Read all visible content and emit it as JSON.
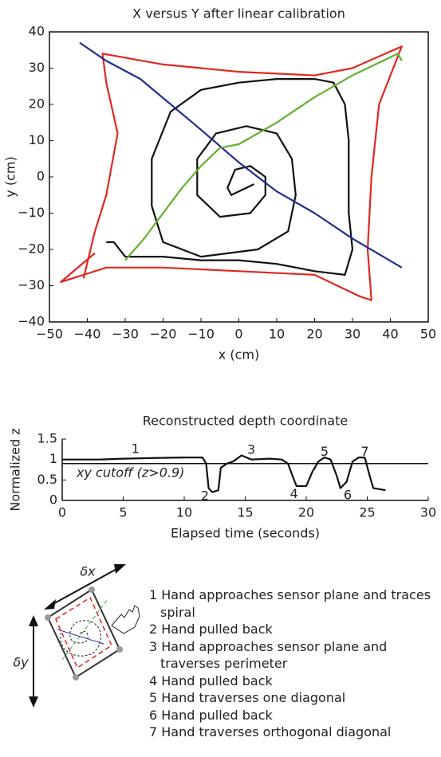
{
  "chart_data": [
    {
      "type": "line",
      "title": "X versus Y after linear calibration",
      "xlabel": "x (cm)",
      "ylabel": "y (cm)",
      "box": true,
      "xlim": [
        -50,
        50
      ],
      "xticks": [
        {
          "value": -50,
          "label": "−50"
        },
        {
          "value": -40,
          "label": "−40"
        },
        {
          "value": -30,
          "label": "−30"
        },
        {
          "value": -20,
          "label": "−20"
        },
        {
          "value": -10,
          "label": "−10"
        },
        0,
        10,
        20,
        30,
        40,
        50
      ],
      "ylim": [
        -40,
        40
      ],
      "yticks": [
        {
          "value": -40,
          "label": "−40"
        },
        {
          "value": -30,
          "label": "−30"
        },
        {
          "value": -20,
          "label": "−20"
        },
        {
          "value": -10,
          "label": "−10"
        },
        0,
        10,
        20,
        30,
        40
      ],
      "series": [
        {
          "color": "#e0281e",
          "x": [
            -38,
            -47,
            -35,
            -20,
            0,
            20,
            32,
            35,
            34,
            35,
            37,
            43,
            30,
            20,
            0,
            -20,
            -36,
            -35,
            -32,
            -35,
            -38,
            -41
          ],
          "values": [
            -21,
            -29,
            -25,
            -25,
            -26,
            -27,
            -33,
            -34,
            -20,
            0,
            20,
            36,
            30,
            28,
            29,
            31,
            34,
            26,
            12,
            -5,
            -15,
            -28
          ]
        },
        {
          "color": "#111111",
          "x": [
            4,
            -2,
            -3,
            -1,
            3,
            7,
            7,
            3,
            -5,
            -11,
            -11,
            -6,
            2,
            10,
            14,
            15,
            13,
            5,
            -10,
            -20,
            -23,
            -23,
            -18,
            -10,
            0,
            10,
            20,
            25,
            28,
            29,
            29,
            29,
            30,
            28,
            20,
            10,
            0,
            -10,
            -20,
            -30,
            -33,
            -35
          ],
          "values": [
            -2,
            -5,
            -3,
            2,
            3,
            0,
            -5,
            -10,
            -11,
            -5,
            5,
            12,
            14,
            12,
            5,
            -5,
            -15,
            -20,
            -22,
            -18,
            -8,
            5,
            18,
            24,
            26,
            27,
            27,
            26,
            20,
            10,
            0,
            -10,
            -20,
            -27,
            -26,
            -24,
            -23,
            -23,
            -22,
            -22,
            -18,
            -18
          ]
        },
        {
          "color": "#1f2d8f",
          "x": [
            -42,
            -35,
            -26,
            -10,
            0,
            10,
            20,
            30,
            43
          ],
          "values": [
            37,
            32,
            27,
            13,
            4,
            -4,
            -10,
            -17,
            -25
          ]
        },
        {
          "color": "#5fb030",
          "x": [
            -30,
            -25,
            -20,
            -15,
            -10,
            -5,
            0,
            10,
            20,
            30,
            38,
            42,
            43
          ],
          "values": [
            -23,
            -17,
            -10,
            -3,
            3,
            8,
            9,
            15,
            22,
            28,
            32,
            34,
            32
          ]
        }
      ]
    },
    {
      "type": "line",
      "title": "Reconstructed depth coordinate",
      "xlabel": "Elapsed time (seconds)",
      "ylabel": "Normalized z",
      "box": false,
      "xlim": [
        0,
        30
      ],
      "xticks": [
        0,
        5,
        10,
        15,
        20,
        25,
        30
      ],
      "ylim": [
        0,
        1.5
      ],
      "yticks": [
        0,
        0.5,
        1,
        1.5
      ],
      "threshold": {
        "value": 0.9,
        "label": "xy cutoff (z>0.9)"
      },
      "annotations": [
        {
          "text": "1",
          "x": 6,
          "y": 1.25
        },
        {
          "text": "2",
          "x": 11.7,
          "y": 0.1
        },
        {
          "text": "3",
          "x": 15.5,
          "y": 1.23
        },
        {
          "text": "4",
          "x": 19,
          "y": 0.15
        },
        {
          "text": "5",
          "x": 21.5,
          "y": 1.18
        },
        {
          "text": "6",
          "x": 23.4,
          "y": 0.12
        },
        {
          "text": "7",
          "x": 24.8,
          "y": 1.18
        }
      ],
      "series": [
        {
          "color": "#111111",
          "x": [
            0,
            1,
            3,
            5,
            8,
            10,
            11.5,
            11.8,
            12,
            12.3,
            12.8,
            13,
            13.5,
            14,
            14.7,
            15.5,
            17,
            18,
            18.5,
            19,
            19.2,
            20,
            20.5,
            21,
            21.5,
            22,
            22.5,
            22.8,
            23.3,
            23.8,
            24.3,
            24.8,
            25.2,
            25.5,
            26.5
          ],
          "values": [
            1.0,
            1.0,
            1.0,
            1.02,
            1.04,
            1.05,
            1.05,
            0.9,
            0.3,
            0.2,
            0.25,
            0.8,
            0.9,
            0.95,
            1.1,
            1.0,
            1.02,
            1.0,
            0.9,
            0.5,
            0.35,
            0.35,
            0.7,
            0.95,
            1.05,
            1.0,
            0.6,
            0.3,
            0.45,
            0.95,
            1.05,
            1.05,
            0.6,
            0.3,
            0.25
          ]
        }
      ]
    }
  ],
  "diagram": {
    "dx": "δx",
    "dy": "δy"
  },
  "notes": [
    "1 Hand approaches sensor plane and traces spiral",
    "2 Hand pulled back",
    "3 Hand approaches sensor plane and traverses perimeter",
    "4 Hand pulled back",
    "5 Hand traverses one diagonal",
    "6 Hand pulled back",
    "7 Hand traverses orthogonal diagonal"
  ]
}
